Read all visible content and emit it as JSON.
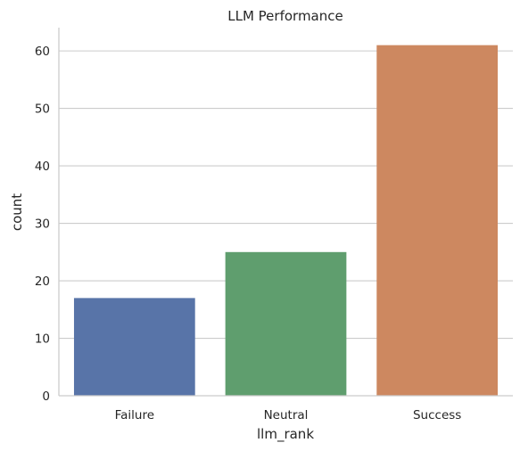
{
  "chart_data": {
    "type": "bar",
    "title": "LLM Performance",
    "xlabel": "llm_rank",
    "ylabel": "count",
    "categories": [
      "Failure",
      "Neutral",
      "Success"
    ],
    "values": [
      17,
      25,
      61
    ],
    "colors": [
      "#5874a8",
      "#5f9e6e",
      "#cd8860"
    ],
    "ylim": [
      0,
      64.05
    ],
    "yticks": [
      0,
      10,
      20,
      30,
      40,
      50,
      60
    ],
    "grid": "y"
  }
}
